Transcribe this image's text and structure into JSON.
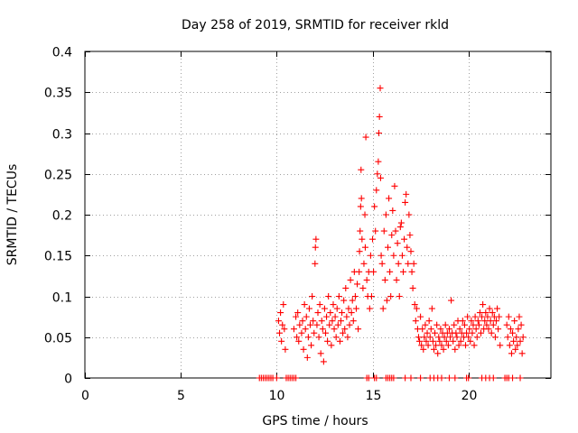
{
  "chart_data": {
    "type": "scatter",
    "title": "Day 258 of 2019, SRMTID for receiver rkld",
    "xlabel": "GPS time / hours",
    "ylabel": "SRMTID / TECUs",
    "xlim": [
      0,
      24.3
    ],
    "ylim": [
      0,
      0.4
    ],
    "xticks": [
      0,
      5,
      10,
      15,
      20
    ],
    "xtick_labels": [
      "0",
      "5",
      "10",
      "15",
      "20"
    ],
    "yticks": [
      0,
      0.05,
      0.1,
      0.15,
      0.2,
      0.25,
      0.3,
      0.35,
      0.4
    ],
    "ytick_labels": [
      "0",
      "0.05",
      "0.1",
      "0.15",
      "0.2",
      "0.25",
      "0.3",
      "0.35",
      "0.4"
    ],
    "grid": true,
    "marker": "plus",
    "series": [
      {
        "name": "SRMTID",
        "color": "#ff0000",
        "points": [
          [
            9.1,
            0
          ],
          [
            9.2,
            0
          ],
          [
            9.3,
            0
          ],
          [
            9.4,
            0
          ],
          [
            9.5,
            0
          ],
          [
            9.6,
            0
          ],
          [
            9.7,
            0
          ],
          [
            9.8,
            0
          ],
          [
            10.0,
            0
          ],
          [
            10.5,
            0
          ],
          [
            10.6,
            0
          ],
          [
            10.7,
            0
          ],
          [
            10.8,
            0
          ],
          [
            10.9,
            0
          ],
          [
            11.0,
            0
          ],
          [
            14.7,
            0
          ],
          [
            14.8,
            0
          ],
          [
            15.1,
            0
          ],
          [
            15.2,
            0
          ],
          [
            15.7,
            0
          ],
          [
            15.8,
            0
          ],
          [
            15.9,
            0
          ],
          [
            16.0,
            0
          ],
          [
            16.1,
            0
          ],
          [
            16.7,
            0
          ],
          [
            17.0,
            0
          ],
          [
            17.5,
            0
          ],
          [
            18.0,
            0
          ],
          [
            18.2,
            0
          ],
          [
            18.4,
            0
          ],
          [
            18.6,
            0
          ],
          [
            19.0,
            0
          ],
          [
            19.3,
            0
          ],
          [
            19.9,
            0
          ],
          [
            20.0,
            0
          ],
          [
            20.7,
            0
          ],
          [
            20.9,
            0
          ],
          [
            21.1,
            0
          ],
          [
            21.3,
            0
          ],
          [
            21.9,
            0
          ],
          [
            22.0,
            0
          ],
          [
            22.1,
            0
          ],
          [
            22.3,
            0
          ],
          [
            22.7,
            0
          ],
          [
            10.1,
            0.07
          ],
          [
            10.15,
            0.055
          ],
          [
            10.2,
            0.08
          ],
          [
            10.25,
            0.045
          ],
          [
            10.3,
            0.065
          ],
          [
            10.35,
            0.09
          ],
          [
            10.4,
            0.06
          ],
          [
            10.45,
            0.035
          ],
          [
            10.9,
            0.06
          ],
          [
            11.0,
            0.075
          ],
          [
            11.05,
            0.05
          ],
          [
            11.1,
            0.08
          ],
          [
            11.15,
            0.045
          ],
          [
            11.2,
            0.065
          ],
          [
            11.3,
            0.055
          ],
          [
            11.35,
            0.07
          ],
          [
            11.4,
            0.035
          ],
          [
            11.45,
            0.09
          ],
          [
            11.5,
            0.06
          ],
          [
            11.55,
            0.075
          ],
          [
            11.6,
            0.025
          ],
          [
            11.65,
            0.05
          ],
          [
            11.7,
            0.085
          ],
          [
            11.75,
            0.065
          ],
          [
            11.8,
            0.04
          ],
          [
            11.85,
            0.1
          ],
          [
            11.9,
            0.07
          ],
          [
            11.95,
            0.055
          ],
          [
            12.0,
            0.14
          ],
          [
            12.02,
            0.16
          ],
          [
            12.05,
            0.17
          ],
          [
            12.1,
            0.065
          ],
          [
            12.15,
            0.08
          ],
          [
            12.2,
            0.05
          ],
          [
            12.25,
            0.09
          ],
          [
            12.3,
            0.03
          ],
          [
            12.35,
            0.07
          ],
          [
            12.4,
            0.06
          ],
          [
            12.45,
            0.02
          ],
          [
            12.5,
            0.085
          ],
          [
            12.55,
            0.055
          ],
          [
            12.6,
            0.075
          ],
          [
            12.65,
            0.045
          ],
          [
            12.7,
            0.1
          ],
          [
            12.75,
            0.065
          ],
          [
            12.8,
            0.08
          ],
          [
            12.85,
            0.04
          ],
          [
            12.9,
            0.07
          ],
          [
            12.95,
            0.09
          ],
          [
            13.0,
            0.06
          ],
          [
            13.05,
            0.075
          ],
          [
            13.1,
            0.05
          ],
          [
            13.15,
            0.085
          ],
          [
            13.2,
            0.065
          ],
          [
            13.25,
            0.1
          ],
          [
            13.3,
            0.045
          ],
          [
            13.35,
            0.07
          ],
          [
            13.4,
            0.08
          ],
          [
            13.45,
            0.055
          ],
          [
            13.5,
            0.095
          ],
          [
            13.55,
            0.06
          ],
          [
            13.6,
            0.11
          ],
          [
            13.65,
            0.075
          ],
          [
            13.7,
            0.05
          ],
          [
            13.75,
            0.085
          ],
          [
            13.8,
            0.065
          ],
          [
            13.85,
            0.12
          ],
          [
            13.9,
            0.08
          ],
          [
            13.95,
            0.095
          ],
          [
            14.0,
            0.07
          ],
          [
            14.05,
            0.13
          ],
          [
            14.1,
            0.1
          ],
          [
            14.15,
            0.085
          ],
          [
            14.2,
            0.115
          ],
          [
            14.25,
            0.06
          ],
          [
            14.3,
            0.13
          ],
          [
            14.32,
            0.155
          ],
          [
            14.35,
            0.18
          ],
          [
            14.38,
            0.21
          ],
          [
            14.4,
            0.255
          ],
          [
            14.42,
            0.22
          ],
          [
            14.45,
            0.17
          ],
          [
            14.5,
            0.11
          ],
          [
            14.55,
            0.14
          ],
          [
            14.6,
            0.2
          ],
          [
            14.62,
            0.16
          ],
          [
            14.65,
            0.295
          ],
          [
            14.7,
            0.12
          ],
          [
            14.75,
            0.1
          ],
          [
            14.8,
            0.13
          ],
          [
            14.85,
            0.085
          ],
          [
            14.9,
            0.15
          ],
          [
            14.95,
            0.1
          ],
          [
            15.0,
            0.17
          ],
          [
            15.05,
            0.13
          ],
          [
            15.1,
            0.21
          ],
          [
            15.15,
            0.18
          ],
          [
            15.2,
            0.23
          ],
          [
            15.25,
            0.25
          ],
          [
            15.3,
            0.265
          ],
          [
            15.33,
            0.3
          ],
          [
            15.36,
            0.32
          ],
          [
            15.4,
            0.355
          ],
          [
            15.42,
            0.245
          ],
          [
            15.45,
            0.15
          ],
          [
            15.5,
            0.14
          ],
          [
            15.55,
            0.085
          ],
          [
            15.6,
            0.18
          ],
          [
            15.65,
            0.12
          ],
          [
            15.7,
            0.2
          ],
          [
            15.75,
            0.095
          ],
          [
            15.8,
            0.16
          ],
          [
            15.85,
            0.22
          ],
          [
            15.9,
            0.13
          ],
          [
            15.95,
            0.1
          ],
          [
            16.0,
            0.175
          ],
          [
            16.05,
            0.205
          ],
          [
            16.1,
            0.15
          ],
          [
            16.15,
            0.235
          ],
          [
            16.2,
            0.18
          ],
          [
            16.25,
            0.12
          ],
          [
            16.3,
            0.165
          ],
          [
            16.35,
            0.14
          ],
          [
            16.4,
            0.1
          ],
          [
            16.45,
            0.185
          ],
          [
            16.5,
            0.19
          ],
          [
            16.55,
            0.15
          ],
          [
            16.6,
            0.13
          ],
          [
            16.65,
            0.17
          ],
          [
            16.7,
            0.215
          ],
          [
            16.75,
            0.225
          ],
          [
            16.8,
            0.16
          ],
          [
            16.85,
            0.14
          ],
          [
            16.9,
            0.2
          ],
          [
            16.95,
            0.175
          ],
          [
            17.0,
            0.155
          ],
          [
            17.05,
            0.13
          ],
          [
            17.1,
            0.11
          ],
          [
            17.15,
            0.14
          ],
          [
            17.2,
            0.09
          ],
          [
            17.25,
            0.07
          ],
          [
            17.3,
            0.085
          ],
          [
            17.35,
            0.06
          ],
          [
            17.4,
            0.05
          ],
          [
            17.45,
            0.045
          ],
          [
            17.5,
            0.075
          ],
          [
            17.55,
            0.04
          ],
          [
            17.6,
            0.06
          ],
          [
            17.65,
            0.035
          ],
          [
            17.7,
            0.05
          ],
          [
            17.75,
            0.065
          ],
          [
            17.8,
            0.045
          ],
          [
            17.85,
            0.055
          ],
          [
            17.9,
            0.04
          ],
          [
            17.95,
            0.07
          ],
          [
            18.0,
            0.05
          ],
          [
            18.05,
            0.06
          ],
          [
            18.1,
            0.085
          ],
          [
            18.15,
            0.045
          ],
          [
            18.2,
            0.035
          ],
          [
            18.25,
            0.055
          ],
          [
            18.3,
            0.04
          ],
          [
            18.35,
            0.065
          ],
          [
            18.4,
            0.03
          ],
          [
            18.45,
            0.05
          ],
          [
            18.5,
            0.045
          ],
          [
            18.55,
            0.06
          ],
          [
            18.6,
            0.04
          ],
          [
            18.65,
            0.055
          ],
          [
            18.7,
            0.035
          ],
          [
            18.75,
            0.05
          ],
          [
            18.8,
            0.065
          ],
          [
            18.85,
            0.045
          ],
          [
            18.9,
            0.055
          ],
          [
            18.95,
            0.04
          ],
          [
            19.0,
            0.06
          ],
          [
            19.05,
            0.05
          ],
          [
            19.1,
            0.095
          ],
          [
            19.15,
            0.055
          ],
          [
            19.2,
            0.045
          ],
          [
            19.25,
            0.065
          ],
          [
            19.3,
            0.035
          ],
          [
            19.35,
            0.055
          ],
          [
            19.4,
            0.05
          ],
          [
            19.45,
            0.07
          ],
          [
            19.5,
            0.04
          ],
          [
            19.55,
            0.06
          ],
          [
            19.6,
            0.045
          ],
          [
            19.65,
            0.055
          ],
          [
            19.7,
            0.07
          ],
          [
            19.75,
            0.05
          ],
          [
            19.8,
            0.065
          ],
          [
            19.85,
            0.04
          ],
          [
            19.9,
            0.055
          ],
          [
            19.95,
            0.075
          ],
          [
            20.0,
            0.05
          ],
          [
            20.05,
            0.06
          ],
          [
            20.1,
            0.045
          ],
          [
            20.15,
            0.07
          ],
          [
            20.2,
            0.055
          ],
          [
            20.25,
            0.065
          ],
          [
            20.3,
            0.04
          ],
          [
            20.35,
            0.075
          ],
          [
            20.4,
            0.06
          ],
          [
            20.45,
            0.05
          ],
          [
            20.5,
            0.07
          ],
          [
            20.55,
            0.065
          ],
          [
            20.6,
            0.08
          ],
          [
            20.65,
            0.055
          ],
          [
            20.7,
            0.075
          ],
          [
            20.75,
            0.09
          ],
          [
            20.8,
            0.06
          ],
          [
            20.85,
            0.07
          ],
          [
            20.9,
            0.08
          ],
          [
            20.95,
            0.065
          ],
          [
            21.0,
            0.075
          ],
          [
            21.05,
            0.06
          ],
          [
            21.1,
            0.085
          ],
          [
            21.15,
            0.07
          ],
          [
            21.2,
            0.055
          ],
          [
            21.25,
            0.08
          ],
          [
            21.3,
            0.065
          ],
          [
            21.35,
            0.075
          ],
          [
            21.4,
            0.05
          ],
          [
            21.45,
            0.07
          ],
          [
            21.5,
            0.085
          ],
          [
            21.55,
            0.06
          ],
          [
            21.6,
            0.075
          ],
          [
            21.65,
            0.04
          ],
          [
            22.0,
            0.065
          ],
          [
            22.05,
            0.05
          ],
          [
            22.1,
            0.075
          ],
          [
            22.15,
            0.04
          ],
          [
            22.2,
            0.06
          ],
          [
            22.25,
            0.03
          ],
          [
            22.3,
            0.055
          ],
          [
            22.35,
            0.045
          ],
          [
            22.4,
            0.07
          ],
          [
            22.45,
            0.035
          ],
          [
            22.5,
            0.05
          ],
          [
            22.55,
            0.04
          ],
          [
            22.6,
            0.06
          ],
          [
            22.65,
            0.075
          ],
          [
            22.7,
            0.045
          ],
          [
            22.75,
            0.065
          ],
          [
            22.8,
            0.03
          ],
          [
            22.85,
            0.05
          ]
        ]
      }
    ]
  }
}
